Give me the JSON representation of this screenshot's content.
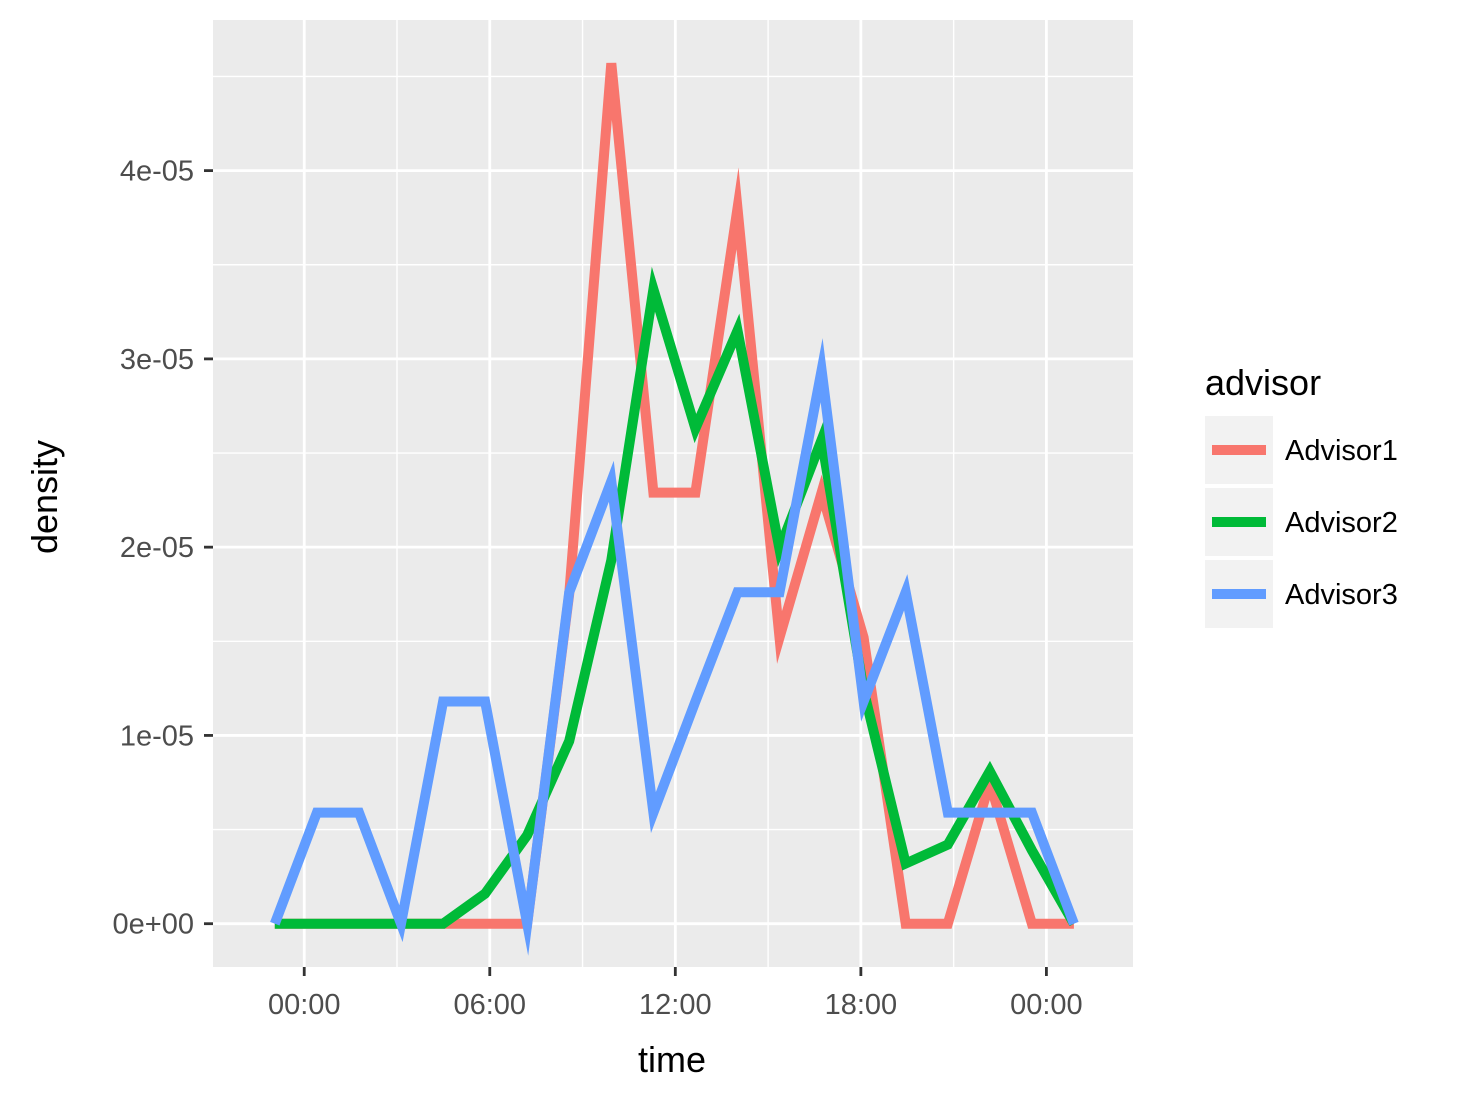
{
  "chart_data": {
    "type": "line",
    "xlabel": "time",
    "ylabel": "density",
    "x_tick_labels": [
      "00:00",
      "06:00",
      "12:00",
      "18:00",
      "00:00"
    ],
    "x_tick_hours": [
      0,
      6,
      12,
      18,
      24
    ],
    "y_ticks": [
      0,
      1e-05,
      2e-05,
      3e-05,
      4e-05
    ],
    "y_tick_labels": [
      "0e+00",
      "1e-05",
      "2e-05",
      "3e-05",
      "4e-05"
    ],
    "xlim": [
      -2.95,
      26.8
    ],
    "ylim": [
      -2.3e-06,
      4.8e-05
    ],
    "grid": true,
    "legend": {
      "title": "advisor",
      "position": "right"
    },
    "series": [
      {
        "name": "Advisor1",
        "color": "#F8766D",
        "x": [
          -0.95,
          0.41,
          1.77,
          3.13,
          4.49,
          5.85,
          7.21,
          8.57,
          9.93,
          11.29,
          12.65,
          14.01,
          15.37,
          16.73,
          18.09,
          19.45,
          20.81,
          22.17,
          23.53,
          24.89
        ],
        "y": [
          0,
          0,
          0,
          0,
          0,
          0,
          0,
          1.75e-05,
          4.57e-05,
          2.29e-05,
          2.29e-05,
          3.8e-05,
          1.52e-05,
          2.29e-05,
          1.52e-05,
          0,
          0,
          7.5e-06,
          0,
          0
        ]
      },
      {
        "name": "Advisor2",
        "color": "#00BA38",
        "x": [
          -0.95,
          0.41,
          1.77,
          3.13,
          4.49,
          5.85,
          7.21,
          8.57,
          9.93,
          11.29,
          12.65,
          14.01,
          15.37,
          16.73,
          18.09,
          19.45,
          20.81,
          22.17,
          23.53,
          24.89
        ],
        "y": [
          0,
          0,
          0,
          0,
          0,
          1.6e-06,
          4.7e-06,
          9.7e-06,
          1.93e-05,
          3.37e-05,
          2.63e-05,
          3.15e-05,
          1.99e-05,
          2.57e-05,
          1.24e-05,
          3.2e-06,
          4.2e-06,
          8.1e-06,
          3.9e-06,
          0
        ]
      },
      {
        "name": "Advisor3",
        "color": "#619CFF",
        "x": [
          -0.95,
          0.41,
          1.77,
          3.13,
          4.49,
          5.85,
          7.21,
          8.57,
          9.93,
          11.29,
          12.65,
          14.01,
          15.37,
          16.73,
          18.09,
          19.45,
          20.81,
          22.17,
          23.53,
          24.89
        ],
        "y": [
          0,
          5.9e-06,
          5.9e-06,
          0,
          1.18e-05,
          1.18e-05,
          0,
          1.76e-05,
          2.35e-05,
          5.9e-06,
          1.18e-05,
          1.76e-05,
          1.76e-05,
          2.94e-05,
          1.18e-05,
          1.76e-05,
          5.9e-06,
          5.9e-06,
          5.9e-06,
          0
        ]
      }
    ]
  }
}
